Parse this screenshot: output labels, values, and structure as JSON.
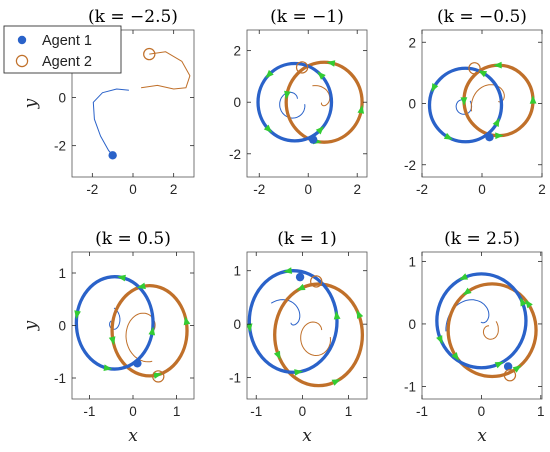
{
  "figure": {
    "colors": {
      "agent1": "#2a62c9",
      "agent2": "#c0702a",
      "marker": "#33cc33",
      "axis": "#262626",
      "frame": "#555555"
    }
  },
  "legend": {
    "position": "top-left of first panel",
    "items": [
      {
        "label": "Agent 1",
        "marker": "filled-circle",
        "color": "#2a62c9"
      },
      {
        "label": "Agent 2",
        "marker": "open-circle",
        "color": "#c0702a"
      }
    ]
  },
  "chart_data": [
    {
      "type": "line",
      "title": "(k = −2.5)",
      "xlabel": "",
      "ylabel": "y",
      "xlim": [
        -3,
        3
      ],
      "ylim": [
        -3.3,
        2.8
      ],
      "xticks": [
        "-2",
        "0",
        "2"
      ],
      "xtick_values": [
        -2,
        0,
        2
      ],
      "yticks": [
        "-2",
        "0"
      ],
      "ytick_values": [
        -2,
        0
      ],
      "grid": false,
      "legend": "top-left",
      "agent1": {
        "end": [
          -1,
          -2.4
        ],
        "path": [
          [
            -0.2,
            0.3
          ],
          [
            -0.8,
            0.35
          ],
          [
            -1.5,
            0.2
          ],
          [
            -1.95,
            -0.2
          ],
          [
            -1.9,
            -0.9
          ],
          [
            -1.6,
            -1.6
          ],
          [
            -1.2,
            -2.2
          ],
          [
            -1,
            -2.4
          ]
        ]
      },
      "agent2": {
        "end": [
          0.8,
          1.8
        ],
        "path": [
          [
            0.4,
            0.4
          ],
          [
            1.2,
            0.5
          ],
          [
            2,
            0.35
          ],
          [
            2.6,
            0.4
          ],
          [
            2.8,
            0.9
          ],
          [
            2.4,
            1.5
          ],
          [
            1.6,
            1.9
          ],
          [
            0.8,
            1.8
          ]
        ]
      }
    },
    {
      "type": "line",
      "title": "(k = −1)",
      "xlabel": "",
      "ylabel": "",
      "xlim": [
        -2.5,
        2.4
      ],
      "ylim": [
        -2.9,
        2.8
      ],
      "xticks": [
        "-2",
        "0",
        "2"
      ],
      "xtick_values": [
        -2,
        0,
        2
      ],
      "yticks": [
        "-2",
        "0",
        "2"
      ],
      "ytick_values": [
        -2,
        0,
        2
      ],
      "grid": false,
      "agent1": {
        "circle": {
          "cx": -0.55,
          "cy": 0.0,
          "r": 1.5
        },
        "end": [
          0.2,
          -1.45
        ]
      },
      "agent2": {
        "circle": {
          "cx": 0.65,
          "cy": 0.0,
          "r": 1.55
        },
        "end": [
          -0.25,
          1.35
        ]
      }
    },
    {
      "type": "line",
      "title": "(k = −0.5)",
      "xlabel": "",
      "ylabel": "",
      "xlim": [
        -2,
        2
      ],
      "ylim": [
        -2.4,
        2.4
      ],
      "xticks": [
        "-2",
        "0",
        "2"
      ],
      "xtick_values": [
        -2,
        0,
        2
      ],
      "yticks": [
        "-2",
        "0",
        "2"
      ],
      "ytick_values": [
        -2,
        0,
        2
      ],
      "grid": false,
      "agent1": {
        "circle": {
          "cx": -0.55,
          "cy": -0.05,
          "r": 1.2
        },
        "end": [
          0.25,
          -1.1
        ]
      },
      "agent2": {
        "circle": {
          "cx": 0.55,
          "cy": 0.1,
          "r": 1.15
        },
        "end": [
          -0.25,
          1.15
        ]
      }
    },
    {
      "type": "line",
      "title": "(k = 0.5)",
      "xlabel": "x",
      "ylabel": "y",
      "xlim": [
        -1.4,
        1.4
      ],
      "ylim": [
        -1.4,
        1.4
      ],
      "xticks": [
        "-1",
        "0",
        "1"
      ],
      "xtick_values": [
        -1,
        0,
        1
      ],
      "yticks": [
        "-1",
        "0",
        "1"
      ],
      "ytick_values": [
        -1,
        0,
        1
      ],
      "grid": false,
      "agent1": {
        "circle": {
          "cx": -0.42,
          "cy": 0.05,
          "r": 0.88
        },
        "end": [
          0.1,
          -0.72
        ]
      },
      "agent2": {
        "circle": {
          "cx": 0.38,
          "cy": -0.1,
          "r": 0.86
        },
        "end": [
          0.58,
          -0.97
        ]
      }
    },
    {
      "type": "line",
      "title": "(k = 1)",
      "xlabel": "x",
      "ylabel": "",
      "xlim": [
        -1.2,
        1.4
      ],
      "ylim": [
        -1.4,
        1.35
      ],
      "xticks": [
        "-1",
        "0",
        "1"
      ],
      "xtick_values": [
        -1,
        0,
        1
      ],
      "yticks": [
        "-1",
        "0",
        "1"
      ],
      "ytick_values": [
        -1,
        0,
        1
      ],
      "grid": false,
      "agent1": {
        "circle": {
          "cx": -0.2,
          "cy": 0.05,
          "r": 0.95
        },
        "end": [
          -0.05,
          0.88
        ]
      },
      "agent2": {
        "circle": {
          "cx": 0.35,
          "cy": -0.2,
          "r": 0.95
        },
        "end": [
          0.3,
          0.8
        ]
      }
    },
    {
      "type": "line",
      "title": "(k = 2.5)",
      "xlabel": "x",
      "ylabel": "",
      "xlim": [
        -1,
        1.02
      ],
      "ylim": [
        -1.2,
        1.15
      ],
      "xticks": [
        "-1",
        "0",
        "1"
      ],
      "xtick_values": [
        -1,
        0,
        1
      ],
      "yticks": [
        "-1",
        "0",
        "1"
      ],
      "ytick_values": [
        -1,
        0,
        1
      ],
      "grid": false,
      "agent1": {
        "circle": {
          "cx": 0.0,
          "cy": 0.05,
          "r": 0.75
        },
        "end": [
          0.45,
          -0.68
        ]
      },
      "agent2": {
        "circle": {
          "cx": 0.18,
          "cy": -0.1,
          "r": 0.74
        },
        "end": [
          0.48,
          -0.82
        ]
      }
    }
  ]
}
